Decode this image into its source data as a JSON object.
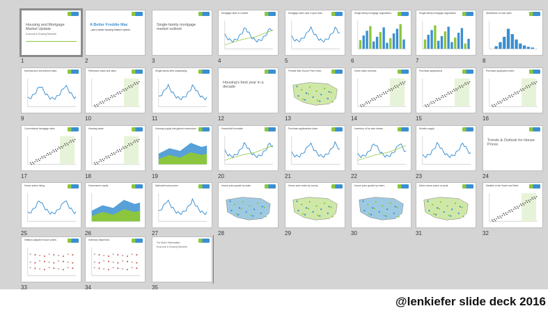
{
  "slides": [
    {
      "num": "1",
      "kind": "title",
      "title": "Housing and Mortgage Market Update",
      "sub": "Economic & Housing Research"
    },
    {
      "num": "2",
      "kind": "brand",
      "title": "A Better Freddie Mac",
      "sub": "...and a better housing finance system"
    },
    {
      "num": "3",
      "kind": "title",
      "title": "Single-family mortgage market outlook",
      "sub": ""
    },
    {
      "num": "4",
      "kind": "line",
      "title": "Mortgage rates in context"
    },
    {
      "num": "5",
      "kind": "line",
      "title": "Mortgage rates near 3-year lows"
    },
    {
      "num": "6",
      "kind": "bars",
      "title": "Single-family mortgage originations"
    },
    {
      "num": "7",
      "kind": "bars2",
      "title": "Single-family mortgage originations"
    },
    {
      "num": "8",
      "kind": "hist",
      "title": "Distribution of note rates"
    },
    {
      "num": "9",
      "kind": "line",
      "title": "Nominal and real interest rates"
    },
    {
      "num": "10",
      "kind": "scatter",
      "title": "Refinance share and rates"
    },
    {
      "num": "11",
      "kind": "line",
      "title": "Single-family debt outstanding"
    },
    {
      "num": "12",
      "kind": "title",
      "title": "Housing's best year in a decade",
      "sub": ""
    },
    {
      "num": "13",
      "kind": "map",
      "title": "Freddie Mac House Price Index"
    },
    {
      "num": "14",
      "kind": "scatter",
      "title": "Home sales increase"
    },
    {
      "num": "15",
      "kind": "scatter",
      "title": "Purchase applications"
    },
    {
      "num": "16",
      "kind": "scatter",
      "title": "Purchase application index"
    },
    {
      "num": "17",
      "kind": "scatter",
      "title": "Conventional mortgage rates"
    },
    {
      "num": "18",
      "kind": "scatter",
      "title": "Housing starts"
    },
    {
      "num": "19",
      "kind": "area",
      "title": "Housing supply has gained momentum"
    },
    {
      "num": "20",
      "kind": "line",
      "title": "Household formation"
    },
    {
      "num": "21",
      "kind": "line",
      "title": "Purchase applications index"
    },
    {
      "num": "22",
      "kind": "line",
      "title": "Inventory of for-sale homes"
    },
    {
      "num": "23",
      "kind": "line",
      "title": "Months supply"
    },
    {
      "num": "24",
      "kind": "title",
      "title": "Trends & Outlook for House Prices",
      "sub": ""
    },
    {
      "num": "25",
      "kind": "line",
      "title": "House prices rising"
    },
    {
      "num": "26",
      "kind": "area2",
      "title": "Homeowner equity"
    },
    {
      "num": "27",
      "kind": "line",
      "title": "National house prices"
    },
    {
      "num": "28",
      "kind": "map",
      "title": "House price growth by state"
    },
    {
      "num": "29",
      "kind": "map",
      "title": "House price index by county"
    },
    {
      "num": "30",
      "kind": "map",
      "title": "House price growth by metro"
    },
    {
      "num": "31",
      "kind": "map",
      "title": "Metro house prices vs peak"
    },
    {
      "num": "32",
      "kind": "scatter",
      "title": "Markets in the South and West"
    },
    {
      "num": "33",
      "kind": "dots",
      "title": "Inflation-adjusted house prices"
    },
    {
      "num": "34",
      "kind": "dots2",
      "title": "Inventory dispersion"
    },
    {
      "num": "35",
      "kind": "contact",
      "title": "For More Information",
      "sub": "Economic & Housing Research"
    }
  ],
  "caption": "@lenkiefer slide deck 2016",
  "colors": {
    "brand_green": "#8cc63f",
    "brand_blue": "#3a8fd1",
    "background": "#d4d4d4"
  }
}
